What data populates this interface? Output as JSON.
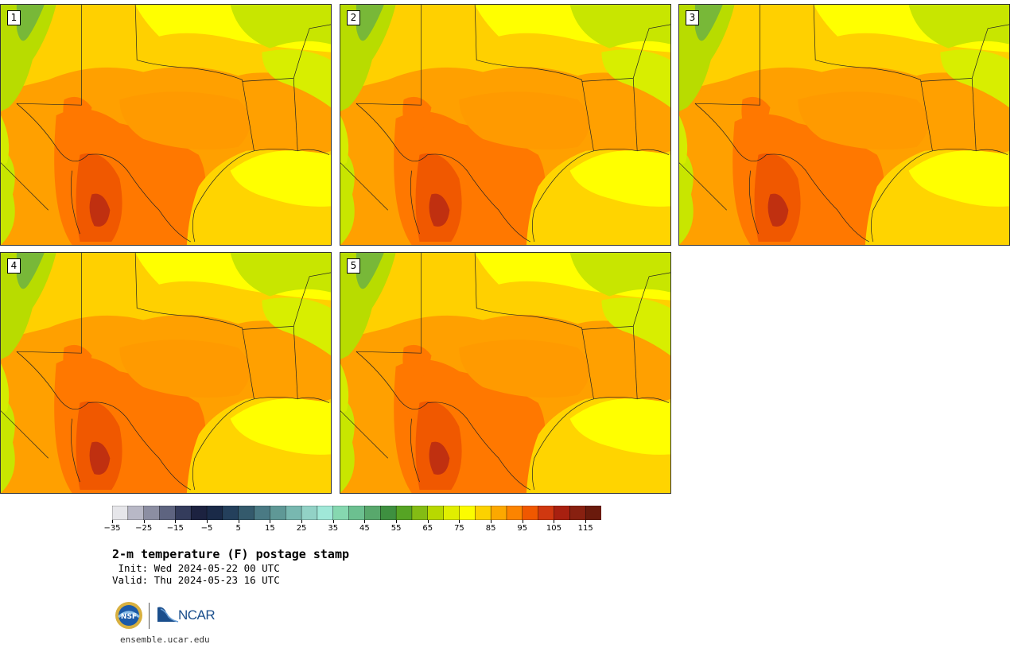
{
  "title": "2-m temperature (F) postage stamp",
  "init": " Init: Wed 2024-05-22 00 UTC",
  "valid": "Valid: Thu 2024-05-23 16 UTC",
  "site": "ensemble.ucar.edu",
  "members": [
    "1",
    "2",
    "3",
    "4",
    "5"
  ],
  "colorbar": {
    "ticks": [
      "−35",
      "−25",
      "−15",
      "−5",
      "5",
      "15",
      "25",
      "35",
      "45",
      "55",
      "65",
      "75",
      "85",
      "95",
      "105",
      "115"
    ],
    "colors": [
      "#e6e6ea",
      "#b8b8c6",
      "#8c8ea2",
      "#5e6480",
      "#343c5c",
      "#1c2240",
      "#1a2a48",
      "#24405c",
      "#345a6c",
      "#4a7a84",
      "#5f9896",
      "#78b8b0",
      "#92d2c6",
      "#a0e8d8",
      "#86d8b0",
      "#6cc090",
      "#58a86c",
      "#3e9040",
      "#56a424",
      "#84bc14",
      "#b8d800",
      "#e0ee00",
      "#fcfc00",
      "#fcd200",
      "#fca800",
      "#fc8400",
      "#f05800",
      "#d03810",
      "#a82010",
      "#882010",
      "#6a1a0c"
    ]
  },
  "colors": {
    "hot": "#ff7800",
    "warm": "#ffa000",
    "mild": "#ffd000",
    "cool": "#ffff00",
    "green": "#c8e600",
    "gulf": "#ffd400"
  }
}
